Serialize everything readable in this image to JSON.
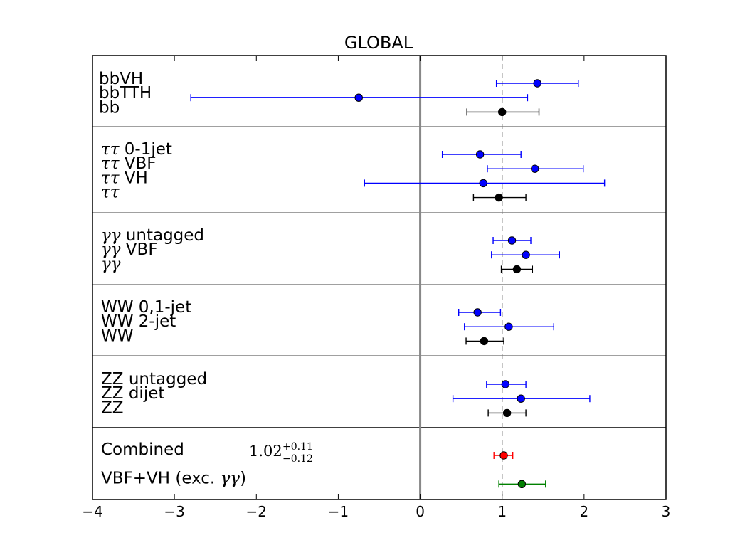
{
  "chart_data": {
    "type": "scatter",
    "title": "GLOBAL",
    "xlabel": "",
    "ylabel": "",
    "xlim": [
      -4,
      3
    ],
    "xticks": [
      -4,
      -3,
      -2,
      -1,
      0,
      1,
      2,
      3
    ],
    "xtick_labels": [
      "−4",
      "−3",
      "−2",
      "−1",
      "0",
      "1",
      "2",
      "3"
    ],
    "reference_lines": [
      {
        "x": 0,
        "style": "solid",
        "color": "#888888"
      },
      {
        "x": 1,
        "style": "dashed",
        "color": "#777777"
      }
    ],
    "groups": [
      {
        "name": "bb",
        "entries": [
          {
            "label": "bbVH",
            "mu": 1.43,
            "lo": 0.93,
            "hi": 1.93,
            "color": "#0000ff"
          },
          {
            "label": "bbTTH",
            "mu": -0.75,
            "lo": -2.8,
            "hi": 1.31,
            "color": "#0000ff"
          },
          {
            "label": "bb",
            "mu": 1.0,
            "lo": 0.57,
            "hi": 1.45,
            "color": "#000000"
          }
        ]
      },
      {
        "name": "tautau",
        "entries": [
          {
            "label_math": "ττ",
            "label_text": "0-1jet",
            "mu": 0.73,
            "lo": 0.27,
            "hi": 1.23,
            "color": "#0000ff"
          },
          {
            "label_math": "ττ",
            "label_text": "VBF",
            "mu": 1.4,
            "lo": 0.82,
            "hi": 1.99,
            "color": "#0000ff"
          },
          {
            "label_math": "ττ",
            "label_text": "VH",
            "mu": 0.77,
            "lo": -0.68,
            "hi": 2.25,
            "color": "#0000ff"
          },
          {
            "label_math": "ττ",
            "label_text": "",
            "mu": 0.96,
            "lo": 0.65,
            "hi": 1.29,
            "color": "#000000"
          }
        ]
      },
      {
        "name": "gammagamma",
        "entries": [
          {
            "label_math": "γγ",
            "label_text": "untagged",
            "mu": 1.12,
            "lo": 0.89,
            "hi": 1.35,
            "color": "#0000ff"
          },
          {
            "label_math": "γγ",
            "label_text": "VBF",
            "mu": 1.29,
            "lo": 0.87,
            "hi": 1.7,
            "color": "#0000ff"
          },
          {
            "label_math": "γγ",
            "label_text": "",
            "mu": 1.18,
            "lo": 0.99,
            "hi": 1.37,
            "color": "#000000"
          }
        ]
      },
      {
        "name": "WW",
        "entries": [
          {
            "label": "WW 0,1-jet",
            "mu": 0.7,
            "lo": 0.47,
            "hi": 0.98,
            "color": "#0000ff"
          },
          {
            "label": "WW 2-jet",
            "mu": 1.08,
            "lo": 0.54,
            "hi": 1.63,
            "color": "#0000ff"
          },
          {
            "label": "WW",
            "mu": 0.78,
            "lo": 0.56,
            "hi": 1.02,
            "color": "#000000"
          }
        ]
      },
      {
        "name": "ZZ",
        "entries": [
          {
            "label": "ZZ untagged",
            "mu": 1.04,
            "lo": 0.81,
            "hi": 1.29,
            "color": "#0000ff"
          },
          {
            "label": "ZZ dijet",
            "mu": 1.23,
            "lo": 0.4,
            "hi": 2.07,
            "color": "#0000ff"
          },
          {
            "label": "ZZ",
            "mu": 1.06,
            "lo": 0.83,
            "hi": 1.29,
            "color": "#000000"
          }
        ]
      },
      {
        "name": "combined",
        "entries": [
          {
            "label": "Combined",
            "mu": 1.02,
            "lo": 0.9,
            "hi": 1.13,
            "color": "#ff0000"
          },
          {
            "label_text": "VBF+VH (exc. ",
            "label_math": "γγ",
            "label_suffix": ")",
            "mu": 1.24,
            "lo": 0.96,
            "hi": 1.53,
            "color": "#008000"
          }
        ]
      }
    ],
    "combined_result": {
      "value": "1.02",
      "plus": "+0.11",
      "minus": "−0.12"
    }
  }
}
